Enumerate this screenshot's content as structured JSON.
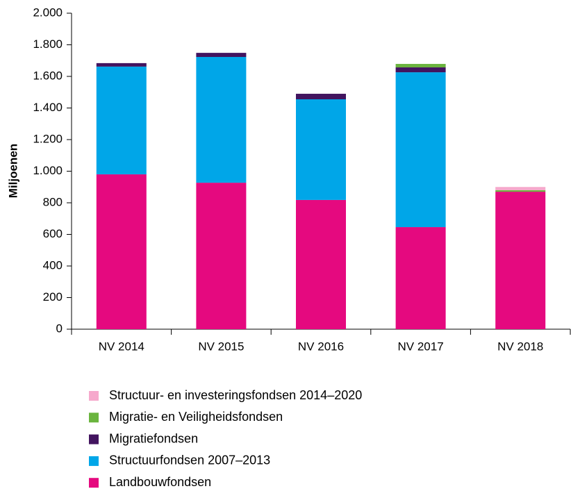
{
  "chart_data": {
    "type": "stacked_bar",
    "y_label": "Miljoenen",
    "categories": [
      "NV 2014",
      "NV 2015",
      "NV 2016",
      "NV 2017",
      "NV 2018"
    ],
    "series": [
      {
        "name": "Landbouwfondsen",
        "color": "#e5097f",
        "values": [
          980,
          927,
          818,
          646,
          870
        ]
      },
      {
        "name": "Structuurfondsen 2007–2013",
        "color": "#00a6e8",
        "values": [
          682,
          796,
          637,
          980,
          0
        ]
      },
      {
        "name": "Migratiefondsen",
        "color": "#42145f",
        "values": [
          22,
          26,
          35,
          31,
          0
        ]
      },
      {
        "name": "Migratie- en Veiligheidsfondsen",
        "color": "#6ab43e",
        "values": [
          0,
          0,
          0,
          22,
          10
        ]
      },
      {
        "name": "Structuur- en investeringsfondsen 2014–2020",
        "color": "#f6a9cc",
        "values": [
          0,
          0,
          0,
          0,
          20
        ]
      }
    ],
    "ylim": [
      0,
      2000
    ],
    "yticks": [
      0,
      200,
      400,
      600,
      800,
      {
        "value": 1000,
        "label": "1.000"
      },
      {
        "value": 1200,
        "label": "1.200"
      },
      {
        "value": 1400,
        "label": "1.400"
      },
      {
        "value": 1600,
        "label": "1.600"
      },
      {
        "value": 1800,
        "label": "1.800"
      },
      {
        "value": 2000,
        "label": "2.000"
      }
    ],
    "legend": "bottom"
  }
}
